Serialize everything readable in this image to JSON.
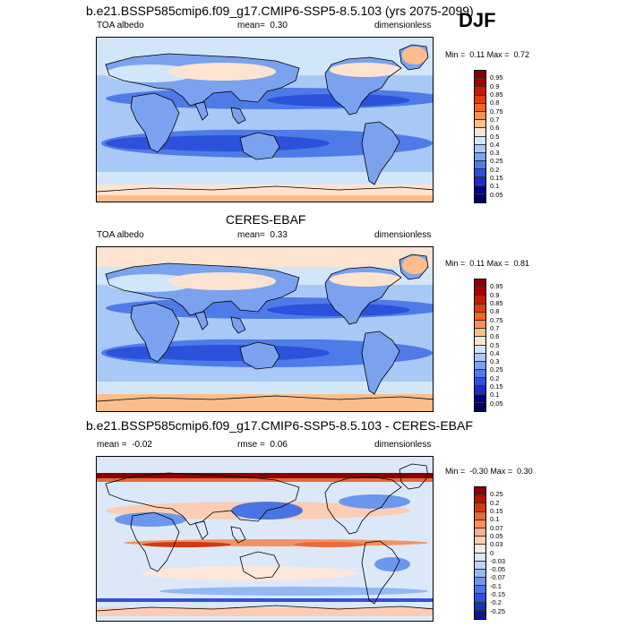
{
  "season": "DJF",
  "panels": [
    {
      "title": "b.e21.BSSP585cmip6.f09_g17.CMIP6-SSP5-8.5.103 (yrs 2075-2099)",
      "left_label": "TOA albedo",
      "mid_label": "mean=",
      "mid_value": "0.30",
      "right_label": "dimensionless",
      "min_label": "Min =",
      "min_value": "0.11",
      "max_label": "Max =",
      "max_value": "0.72",
      "colorbar_ticks": [
        "0.95",
        "0.9",
        "0.85",
        "0.8",
        "0.75",
        "0.7",
        "0.6",
        "0.5",
        "0.4",
        "0.3",
        "0.25",
        "0.2",
        "0.15",
        "0.1",
        "0.05"
      ]
    },
    {
      "title": "CERES-EBAF",
      "left_label": "TOA albedo",
      "mid_label": "mean=",
      "mid_value": "0.33",
      "right_label": "dimensionless",
      "min_label": "Min =",
      "min_value": "0.11",
      "max_label": "Max =",
      "max_value": "0.81",
      "colorbar_ticks": [
        "0.95",
        "0.9",
        "0.85",
        "0.8",
        "0.75",
        "0.7",
        "0.6",
        "0.5",
        "0.4",
        "0.3",
        "0.25",
        "0.2",
        "0.15",
        "0.1",
        "0.05"
      ]
    },
    {
      "title": "b.e21.BSSP585cmip6.f09_g17.CMIP6-SSP5-8.5.103 - CERES-EBAF",
      "left_label": "mean =",
      "left_value": "-0.02",
      "mid_label": "rmse =",
      "mid_value": "0.06",
      "right_label": "dimensionless",
      "min_label": "Min =",
      "min_value": "-0.30",
      "max_label": "Max =",
      "max_value": "0.30",
      "colorbar_ticks": [
        "0.25",
        "0.2",
        "0.15",
        "0.1",
        "0.07",
        "0.05",
        "0.03",
        "0",
        "-0.03",
        "-0.05",
        "-0.07",
        "-0.1",
        "-0.15",
        "-0.2",
        "-0.25"
      ]
    }
  ],
  "colors": {
    "abs_scale": [
      "#870000",
      "#a80000",
      "#c81a00",
      "#e63a0a",
      "#f2661e",
      "#f99250",
      "#fcbd8c",
      "#fee4d0",
      "#d2e6fa",
      "#a8c8f5",
      "#7aa2ee",
      "#4f7be8",
      "#2c52dc",
      "#1830bf",
      "#00008a",
      "#000060"
    ],
    "diff_scale": [
      "#8b0000",
      "#b01505",
      "#d03a12",
      "#ea6a35",
      "#f59060",
      "#faae8a",
      "#fccdb4",
      "#fde7da",
      "#dce8f8",
      "#bdd4f6",
      "#93b8f2",
      "#6c97ec",
      "#4a74e4",
      "#2f52d6",
      "#1a33bb",
      "#0b1a93"
    ],
    "land_outline": "#000000"
  }
}
